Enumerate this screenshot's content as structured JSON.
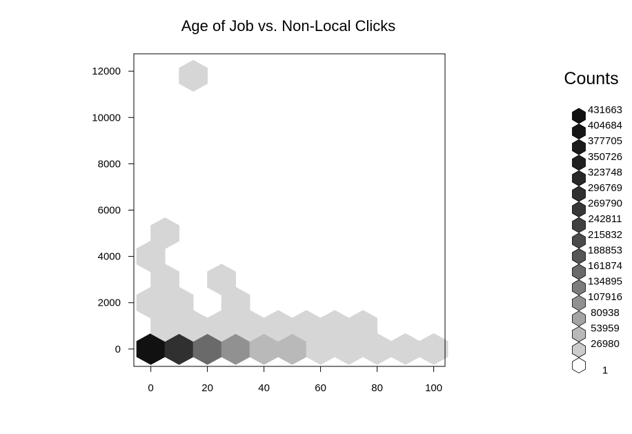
{
  "chart_data": {
    "type": "hexbin",
    "title": "Age of Job vs. Non-Local Clicks",
    "xlabel": "",
    "ylabel": "",
    "xlim": [
      -6,
      104
    ],
    "ylim": [
      -750,
      12750
    ],
    "x_ticks": [
      0,
      20,
      40,
      60,
      80,
      100
    ],
    "y_ticks": [
      0,
      2000,
      4000,
      6000,
      8000,
      10000,
      12000
    ],
    "hex_size": {
      "dx": 10,
      "dy": 1160
    },
    "bins": [
      {
        "x": 0,
        "y": 0,
        "count": 431663
      },
      {
        "x": 10,
        "y": 0,
        "count": 296769
      },
      {
        "x": 20,
        "y": 0,
        "count": 161874
      },
      {
        "x": 30,
        "y": 0,
        "count": 107916
      },
      {
        "x": 40,
        "y": 0,
        "count": 53959
      },
      {
        "x": 50,
        "y": 0,
        "count": 53959
      },
      {
        "x": 60,
        "y": 0,
        "count": 1
      },
      {
        "x": 70,
        "y": 0,
        "count": 1
      },
      {
        "x": 80,
        "y": 0,
        "count": 1
      },
      {
        "x": 90,
        "y": 0,
        "count": 1
      },
      {
        "x": 100,
        "y": 0,
        "count": 1
      },
      {
        "x": 5,
        "y": 1000,
        "count": 1
      },
      {
        "x": 15,
        "y": 1000,
        "count": 1
      },
      {
        "x": 25,
        "y": 1000,
        "count": 1
      },
      {
        "x": 35,
        "y": 1000,
        "count": 1
      },
      {
        "x": 45,
        "y": 1000,
        "count": 1
      },
      {
        "x": 55,
        "y": 1000,
        "count": 1
      },
      {
        "x": 65,
        "y": 1000,
        "count": 1
      },
      {
        "x": 75,
        "y": 1000,
        "count": 1
      },
      {
        "x": 0,
        "y": 2000,
        "count": 1
      },
      {
        "x": 10,
        "y": 2000,
        "count": 1
      },
      {
        "x": 30,
        "y": 2000,
        "count": 1
      },
      {
        "x": 5,
        "y": 3000,
        "count": 1
      },
      {
        "x": 25,
        "y": 3000,
        "count": 1
      },
      {
        "x": 0,
        "y": 4000,
        "count": 1
      },
      {
        "x": 5,
        "y": 5000,
        "count": 1
      },
      {
        "x": 15,
        "y": 11800,
        "count": 1
      }
    ],
    "legend": {
      "title": "Counts",
      "entries": [
        {
          "label": "431663",
          "color": "#111111"
        },
        {
          "label": "404684",
          "color": "#161616"
        },
        {
          "label": "377705",
          "color": "#1b1b1b"
        },
        {
          "label": "350726",
          "color": "#212121"
        },
        {
          "label": "323748",
          "color": "#282828"
        },
        {
          "label": "296769",
          "color": "#303030"
        },
        {
          "label": "269790",
          "color": "#383838"
        },
        {
          "label": "242811",
          "color": "#414141"
        },
        {
          "label": "215832",
          "color": "#4b4b4b"
        },
        {
          "label": "188853",
          "color": "#565656"
        },
        {
          "label": "161874",
          "color": "#6a6a6a"
        },
        {
          "label": "134895",
          "color": "#7d7d7d"
        },
        {
          "label": "107916",
          "color": "#919191"
        },
        {
          "label": "80938",
          "color": "#a4a4a4"
        },
        {
          "label": "53959",
          "color": "#b9b9b9"
        },
        {
          "label": "26980",
          "color": "#cccccc"
        },
        {
          "label": "1",
          "color": "#ffffff"
        }
      ],
      "bin_color_low": "#d6d6d6"
    }
  }
}
